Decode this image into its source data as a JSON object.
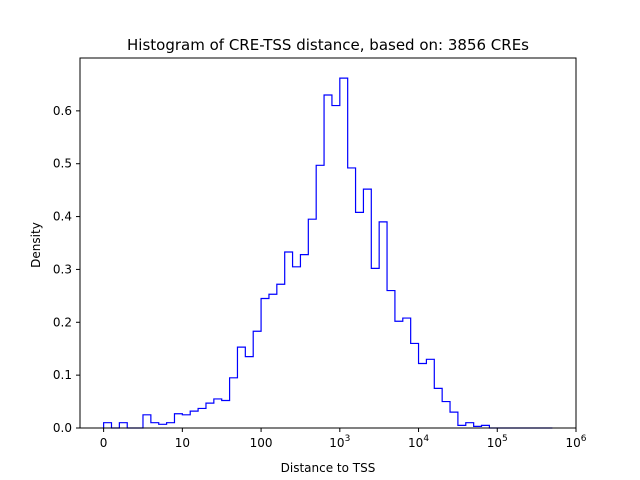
{
  "chart_data": {
    "type": "histogram-step",
    "title": "Histogram of CRE-TSS distance, based on: 3856 CREs",
    "xlabel": "Distance to TSS",
    "ylabel": "Density",
    "x_scale": "log10(1+x)",
    "xlim_log10": [
      -0.3,
      6.0
    ],
    "ylim": [
      0,
      0.7
    ],
    "x_ticks": [
      {
        "log10": 0,
        "base": "0",
        "exp": ""
      },
      {
        "log10": 1,
        "base": "10",
        "exp": ""
      },
      {
        "log10": 2,
        "base": "100",
        "exp": ""
      },
      {
        "log10": 3,
        "base": "10",
        "exp": "3"
      },
      {
        "log10": 4,
        "base": "10",
        "exp": "4"
      },
      {
        "log10": 5,
        "base": "10",
        "exp": "5"
      },
      {
        "log10": 6,
        "base": "10",
        "exp": "6"
      }
    ],
    "y_ticks": [
      "0.0",
      "0.1",
      "0.2",
      "0.3",
      "0.4",
      "0.5",
      "0.6"
    ],
    "line_color": "#0000ff",
    "grid": false,
    "bin_edges_log10": [
      0.0,
      0.1,
      0.2,
      0.3,
      0.4,
      0.5,
      0.6,
      0.7,
      0.8,
      0.9,
      1.0,
      1.1,
      1.2,
      1.3,
      1.4,
      1.5,
      1.6,
      1.7,
      1.8,
      1.9,
      2.0,
      2.1,
      2.2,
      2.3,
      2.4,
      2.5,
      2.6,
      2.7,
      2.8,
      2.9,
      3.0,
      3.1,
      3.2,
      3.3,
      3.4,
      3.5,
      3.6,
      3.7,
      3.8,
      3.9,
      4.0,
      4.1,
      4.2,
      4.3,
      4.4,
      4.5,
      4.6,
      4.7,
      4.8,
      4.9,
      5.0,
      5.1,
      5.2,
      5.3,
      5.4,
      5.5,
      5.6,
      5.7
    ],
    "density": [
      0.01,
      0.0,
      0.01,
      0.0,
      0.0,
      0.025,
      0.01,
      0.007,
      0.01,
      0.027,
      0.025,
      0.032,
      0.037,
      0.047,
      0.055,
      0.052,
      0.095,
      0.153,
      0.135,
      0.183,
      0.245,
      0.253,
      0.272,
      0.333,
      0.305,
      0.328,
      0.395,
      0.497,
      0.63,
      0.61,
      0.662,
      0.492,
      0.408,
      0.452,
      0.302,
      0.39,
      0.26,
      0.202,
      0.208,
      0.16,
      0.122,
      0.13,
      0.075,
      0.05,
      0.03,
      0.005,
      0.01,
      0.003,
      0.005,
      0.0,
      0.0,
      0.0,
      0.0,
      0.0,
      0.0,
      0.0,
      0.0
    ]
  }
}
